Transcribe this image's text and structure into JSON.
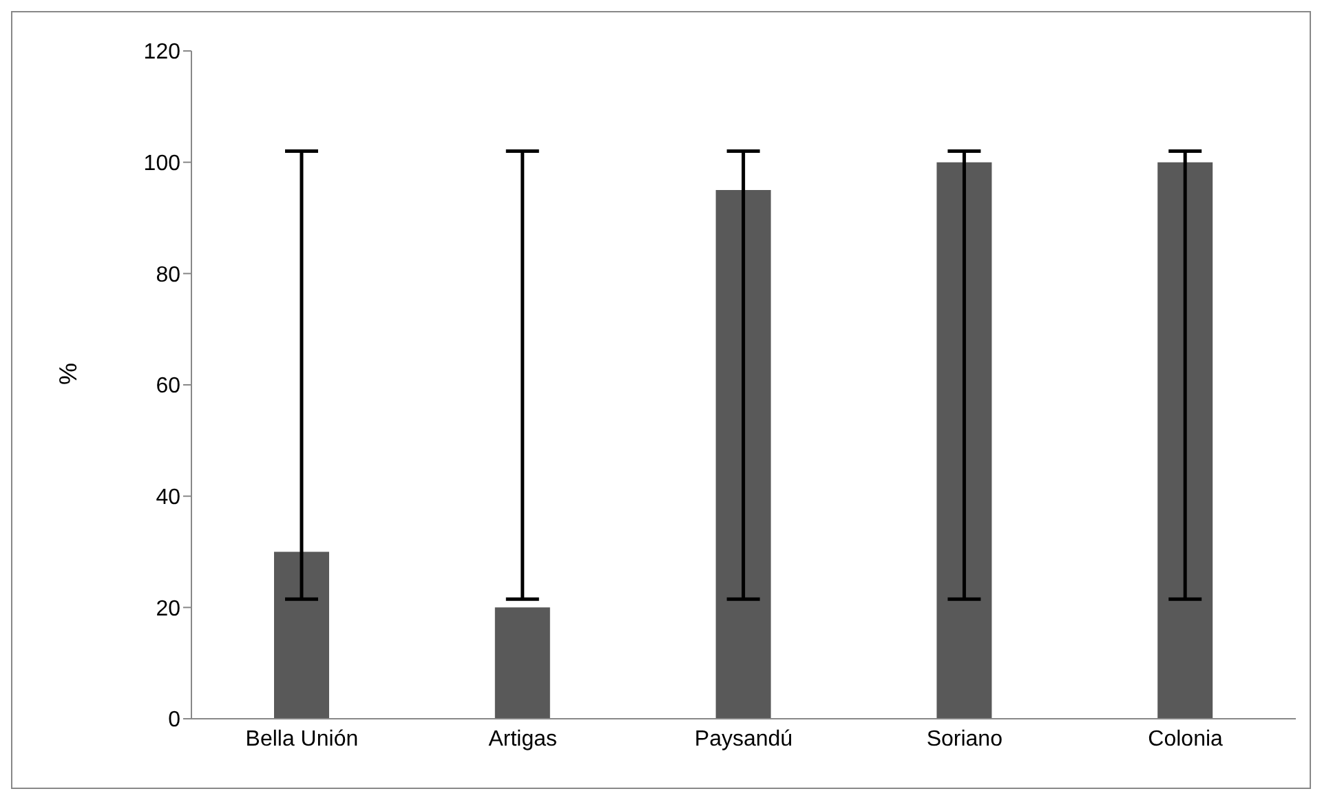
{
  "chart_data": {
    "type": "bar",
    "ylabel": "%",
    "categories": [
      "Bella Unión",
      "Artigas",
      "Paysandú",
      "Soriano",
      "Colonia"
    ],
    "values": [
      30,
      20,
      95,
      100,
      100
    ],
    "errors": [
      [
        21.5,
        102
      ],
      [
        21.5,
        102
      ],
      [
        21.5,
        102
      ],
      [
        21.5,
        102
      ],
      [
        21.5,
        102
      ]
    ],
    "color": "#595959",
    "ylim": [
      0,
      120
    ],
    "yticks": [
      0,
      20,
      40,
      60,
      80,
      100,
      120
    ],
    "grid": false,
    "legend": false
  }
}
